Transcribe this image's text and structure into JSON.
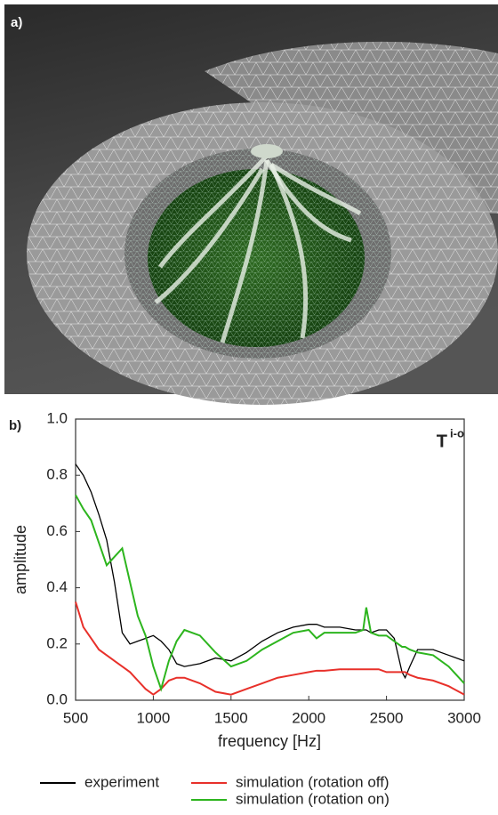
{
  "panels": {
    "a": "a)"
  },
  "chart_data": {
    "type": "line",
    "panel_label": "b)",
    "x_label": "frequency [Hz]",
    "y_label": "amplitude",
    "annotation": "T",
    "annotation_superscript": "i-o",
    "x": [
      500,
      550,
      600,
      650,
      700,
      750,
      800,
      850,
      900,
      950,
      1000,
      1050,
      1100,
      1150,
      1200,
      1300,
      1400,
      1500,
      1600,
      1700,
      1800,
      1900,
      2000,
      2050,
      2100,
      2200,
      2300,
      2350,
      2370,
      2400,
      2450,
      2500,
      2550,
      2600,
      2620,
      2650,
      2700,
      2800,
      2900,
      3000
    ],
    "series": [
      {
        "name": "experiment",
        "color": "#000000",
        "values": [
          0.84,
          0.8,
          0.74,
          0.66,
          0.57,
          0.42,
          0.24,
          0.2,
          0.21,
          0.22,
          0.23,
          0.21,
          0.18,
          0.13,
          0.12,
          0.13,
          0.15,
          0.14,
          0.17,
          0.21,
          0.24,
          0.26,
          0.27,
          0.27,
          0.26,
          0.26,
          0.25,
          0.25,
          0.25,
          0.24,
          0.25,
          0.25,
          0.22,
          0.1,
          0.08,
          0.12,
          0.18,
          0.18,
          0.16,
          0.14
        ]
      },
      {
        "name": "simulation (rotation off)",
        "color": "#e8302a",
        "values": [
          0.35,
          0.26,
          0.22,
          0.18,
          0.16,
          0.14,
          0.12,
          0.1,
          0.07,
          0.04,
          0.02,
          0.04,
          0.07,
          0.08,
          0.08,
          0.06,
          0.03,
          0.02,
          0.04,
          0.06,
          0.08,
          0.09,
          0.1,
          0.105,
          0.105,
          0.11,
          0.11,
          0.11,
          0.11,
          0.11,
          0.11,
          0.1,
          0.1,
          0.1,
          0.1,
          0.09,
          0.08,
          0.07,
          0.05,
          0.02
        ]
      },
      {
        "name": "simulation (rotation on)",
        "color": "#2db51e",
        "values": [
          0.73,
          0.68,
          0.64,
          0.56,
          0.48,
          0.51,
          0.54,
          0.42,
          0.3,
          0.23,
          0.12,
          0.04,
          0.14,
          0.21,
          0.25,
          0.23,
          0.17,
          0.12,
          0.14,
          0.18,
          0.21,
          0.24,
          0.25,
          0.22,
          0.24,
          0.24,
          0.24,
          0.25,
          0.33,
          0.24,
          0.23,
          0.23,
          0.21,
          0.19,
          0.19,
          0.18,
          0.17,
          0.16,
          0.12,
          0.06
        ]
      }
    ],
    "xlim": [
      500,
      3000
    ],
    "xticks": [
      500,
      1000,
      1500,
      2000,
      2500,
      3000
    ],
    "ylim": [
      0,
      1
    ],
    "yticks": [
      {
        "value": 0,
        "label": "0.0"
      },
      0.2,
      0.4,
      0.6,
      0.8,
      {
        "value": 1,
        "label": "1.0"
      }
    ]
  }
}
